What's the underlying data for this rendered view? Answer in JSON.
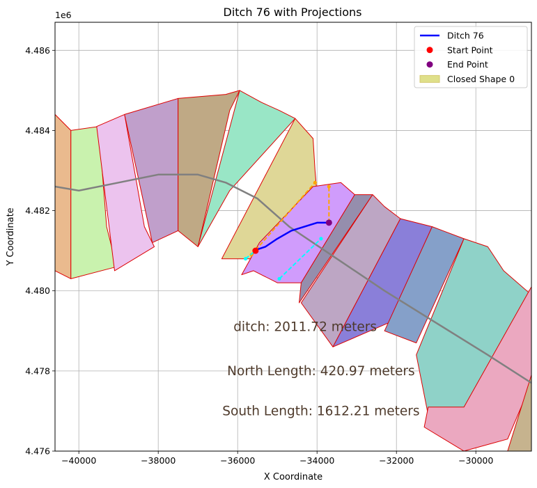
{
  "chart_data": {
    "type": "line",
    "title": "Ditch 76 with Projections",
    "xlabel": "X Coordinate",
    "ylabel": "Y Coordinate",
    "y_offset_label": "1e6",
    "xlim": [
      -40600,
      -28600
    ],
    "ylim": [
      4.476,
      4.4867
    ],
    "x_ticks": [
      -40000,
      -38000,
      -36000,
      -34000,
      -32000,
      -30000
    ],
    "x_tick_labels": [
      "−40000",
      "−38000",
      "−36000",
      "−34000",
      "−32000",
      "−30000"
    ],
    "y_ticks": [
      4.476,
      4.478,
      4.48,
      4.482,
      4.484,
      4.486
    ],
    "y_tick_labels": [
      "4.476",
      "4.478",
      "4.480",
      "4.482",
      "4.484",
      "4.486"
    ],
    "grid": true,
    "legend_position": "top-right",
    "legend": [
      {
        "label": "Ditch 76",
        "kind": "line",
        "color": "#0000ff"
      },
      {
        "label": "Start Point",
        "kind": "marker",
        "color": "#ff0000"
      },
      {
        "label": "End Point",
        "kind": "marker",
        "color": "#800080"
      },
      {
        "label": "Closed Shape 0",
        "kind": "patch",
        "color": "#dfe08a"
      }
    ],
    "annotations": [
      {
        "text": "ditch: 2011.72 meters",
        "x": -34300,
        "y": 4.4791
      },
      {
        "text": "North Length: 420.97 meters",
        "x": -33900,
        "y": 4.478
      },
      {
        "text": "South Length: 1612.21 meters",
        "x": -33900,
        "y": 4.477
      }
    ],
    "ditch": {
      "name": "Ditch 76",
      "color": "#0000ff",
      "x": [
        -35600,
        -35300,
        -35000,
        -34650,
        -34000,
        -33700
      ],
      "y": [
        4.481,
        4.4811,
        4.4813,
        4.4815,
        4.4817,
        4.4817
      ]
    },
    "start_point": {
      "x": -35550,
      "y": 4.481,
      "color": "#ff0000"
    },
    "end_point": {
      "x": -33700,
      "y": 4.4817,
      "color": "#800080"
    },
    "centerline": {
      "color": "#808080",
      "x": [
        -40600,
        -40000,
        -39000,
        -38000,
        -37500,
        -37000,
        -36300,
        -35500,
        -34700,
        -33500,
        -32300,
        -31000,
        -29700,
        -28600
      ],
      "y": [
        4.4826,
        4.4825,
        4.4827,
        4.4829,
        4.4829,
        4.4829,
        4.4827,
        4.4823,
        4.4816,
        4.4808,
        4.48,
        4.4792,
        4.4784,
        4.4777
      ]
    },
    "projections": [
      {
        "side": "north",
        "color": "#ffa500",
        "x": [
          -35650,
          -34050
        ],
        "y": [
          4.4809,
          4.4827
        ]
      },
      {
        "side": "north",
        "color": "#ffa500",
        "x": [
          -33700,
          -33700
        ],
        "y": [
          4.4817,
          4.4826
        ]
      },
      {
        "side": "south",
        "color": "#00ffff",
        "x": [
          -35800,
          -35550
        ],
        "y": [
          4.4808,
          4.481
        ]
      },
      {
        "side": "south",
        "color": "#00ffff",
        "x": [
          -34950,
          -33900
        ],
        "y": [
          4.4803,
          4.4813
        ]
      }
    ],
    "polygons": [
      {
        "color": "#eaba8e",
        "x": [
          -40600,
          -40200,
          -40200,
          -40600
        ],
        "y": [
          4.4844,
          4.484,
          4.4803,
          4.4805
        ]
      },
      {
        "color": "#c9f2ae",
        "x": [
          -40200,
          -39500,
          -39300,
          -39050,
          -40200
        ],
        "y": [
          4.484,
          4.4841,
          4.4816,
          4.4806,
          4.4803
        ]
      },
      {
        "color": "#ecc3ee",
        "x": [
          -39550,
          -38850,
          -38350,
          -38100,
          -39100
        ],
        "y": [
          4.4841,
          4.4844,
          4.4816,
          4.4811,
          4.4805
        ]
      },
      {
        "color": "#c09fcb",
        "x": [
          -38850,
          -37500,
          -37500,
          -38150
        ],
        "y": [
          4.4844,
          4.4848,
          4.4815,
          4.4812
        ]
      },
      {
        "color": "#bfa985",
        "x": [
          -37500,
          -36300,
          -35950,
          -36200,
          -37000,
          -37500
        ],
        "y": [
          4.4848,
          4.4849,
          4.485,
          4.4845,
          4.4811,
          4.4815
        ]
      },
      {
        "color": "#99e6c6",
        "x": [
          -35950,
          -35400,
          -34950,
          -34550,
          -36200,
          -37000
        ],
        "y": [
          4.485,
          4.4847,
          4.4845,
          4.4843,
          4.4825,
          4.4811
        ]
      },
      {
        "color": "#dfd797",
        "x": [
          -34550,
          -34100,
          -34050,
          -34000,
          -35250,
          -35600,
          -36400
        ],
        "y": [
          4.4843,
          4.4838,
          4.483,
          4.4824,
          4.4812,
          4.4808,
          4.4808
        ]
      },
      {
        "color": "#d09cfc",
        "x": [
          -34100,
          -33400,
          -33050,
          -34400,
          -35000,
          -35600,
          -35900,
          -35450
        ],
        "y": [
          4.4826,
          4.4827,
          4.4824,
          4.4802,
          4.4802,
          4.4805,
          4.4804,
          4.4812
        ]
      },
      {
        "color": "#958ead",
        "x": [
          -33050,
          -32600,
          -34450,
          -34400
        ],
        "y": [
          4.4824,
          4.4824,
          4.4797,
          4.4802
        ]
      },
      {
        "color": "#bda6c4",
        "x": [
          -32600,
          -32300,
          -31900,
          -33600,
          -34400
        ],
        "y": [
          4.4824,
          4.4821,
          4.4818,
          4.4786,
          4.4797
        ]
      },
      {
        "color": "#8a7fd9",
        "x": [
          -31900,
          -31100,
          -32200,
          -33600
        ],
        "y": [
          4.4818,
          4.4816,
          4.4792,
          4.4786
        ]
      },
      {
        "color": "#85a0c9",
        "x": [
          -31100,
          -30300,
          -31500,
          -32300
        ],
        "y": [
          4.4816,
          4.4813,
          4.4787,
          4.479
        ]
      },
      {
        "color": "#8fd2c8",
        "x": [
          -30300,
          -29700,
          -29300,
          -28600,
          -30300,
          -31200,
          -31500
        ],
        "y": [
          4.4813,
          4.4811,
          4.4805,
          4.4799,
          4.4768,
          4.4769,
          4.4784
        ]
      },
      {
        "color": "#eba8c0",
        "x": [
          -28600,
          -28600,
          -29200,
          -30300,
          -31300,
          -31200,
          -30300
        ],
        "y": [
          4.4801,
          4.4777,
          4.4763,
          4.476,
          4.4766,
          4.4771,
          4.4771
        ]
      },
      {
        "color": "#c6b38e",
        "x": [
          -28600,
          -28600,
          -29200
        ],
        "y": [
          4.4779,
          4.476,
          4.476
        ]
      }
    ]
  }
}
